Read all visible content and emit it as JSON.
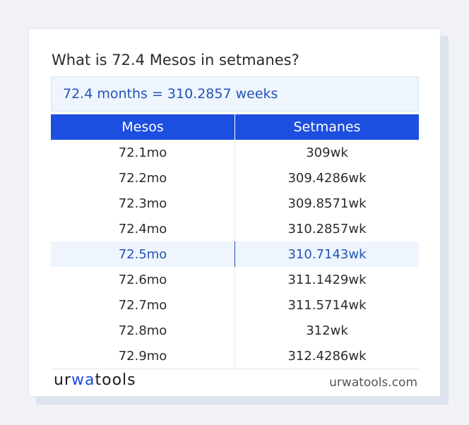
{
  "question": "What is 72.4 Mesos in setmanes?",
  "answer": "72.4 months = 310.2857 weeks",
  "table": {
    "headers": [
      "Mesos",
      "Setmanes"
    ],
    "rows": [
      [
        "72.1mo",
        "309wk"
      ],
      [
        "72.2mo",
        "309.4286wk"
      ],
      [
        "72.3mo",
        "309.8571wk"
      ],
      [
        "72.4mo",
        "310.2857wk"
      ],
      [
        "72.5mo",
        "310.7143wk"
      ],
      [
        "72.6mo",
        "311.1429wk"
      ],
      [
        "72.7mo",
        "311.5714wk"
      ],
      [
        "72.8mo",
        "312wk"
      ],
      [
        "72.9mo",
        "312.4286wk"
      ]
    ],
    "highlighted_row": 4
  },
  "footer": {
    "logo_a": "ur",
    "logo_b": "wa",
    "logo_c": "tools",
    "site": "urwatools.com"
  },
  "colors": {
    "header_bg": "#1c4ee0",
    "highlight_text": "#2453b6",
    "highlight_bg": "#eef5fd"
  }
}
